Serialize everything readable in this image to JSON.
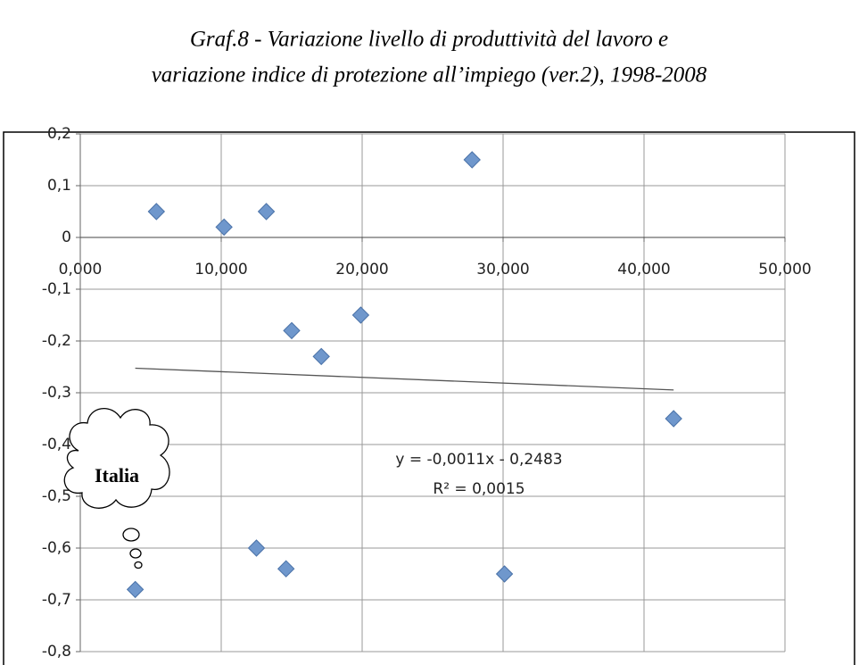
{
  "chart_data": {
    "type": "scatter",
    "title": "Graf.8 - Variazione livello di produttività del lavoro e",
    "subtitle": "variazione indice di protezione all’impiego (ver.2), 1998-2008",
    "x": [
      5.4,
      10.2,
      13.2,
      27.8,
      15.0,
      17.1,
      19.9,
      42.1,
      3.9,
      12.5,
      14.6,
      30.1
    ],
    "values": [
      0.05,
      0.02,
      0.05,
      0.15,
      -0.18,
      -0.23,
      -0.15,
      -0.35,
      -0.68,
      -0.6,
      -0.64,
      -0.65
    ],
    "color": "#6f97cc",
    "xlim": [
      0,
      50
    ],
    "ylim": [
      -0.8,
      0.2
    ],
    "xticks": [
      {
        "value": 0,
        "label": "0,000"
      },
      {
        "value": 10,
        "label": "10,000"
      },
      {
        "value": 20,
        "label": "20,000"
      },
      {
        "value": 30,
        "label": "30,000"
      },
      {
        "value": 40,
        "label": "40,000"
      },
      {
        "value": 50,
        "label": "50,000"
      }
    ],
    "yticks": [
      {
        "value": 0.2,
        "label": "0,2"
      },
      {
        "value": 0.1,
        "label": "0,1"
      },
      0,
      {
        "value": -0.1,
        "label": "-0,1"
      },
      {
        "value": -0.2,
        "label": "-0,2"
      },
      {
        "value": -0.3,
        "label": "-0,3"
      },
      {
        "value": -0.4,
        "label": "-0,4"
      },
      {
        "value": -0.5,
        "label": "-0,5"
      },
      {
        "value": -0.6,
        "label": "-0,6"
      },
      {
        "value": -0.7,
        "label": "-0,7"
      },
      {
        "value": -0.8,
        "label": "-0,8"
      }
    ],
    "grid": true,
    "trendline": {
      "slope": -0.0011,
      "intercept": -0.2483,
      "equation": "y = -0,0011x - 0,2483",
      "r2": "R² = 0,0015"
    },
    "annotation": "Italia"
  }
}
